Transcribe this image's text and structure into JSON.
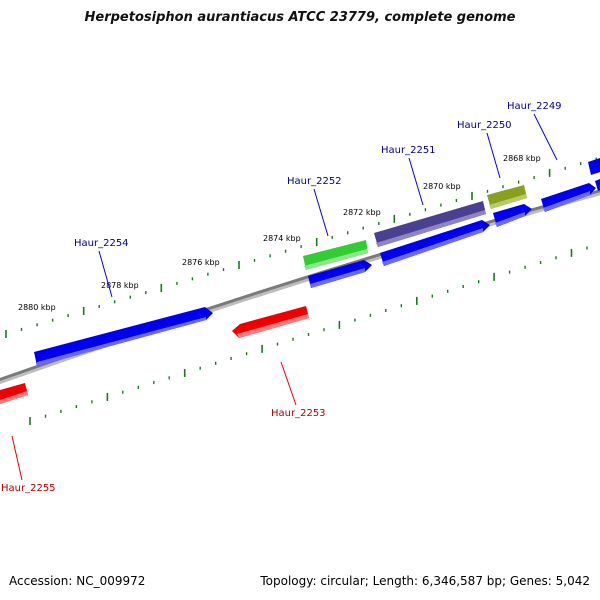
{
  "title": "Herpetosiphon aurantiacus ATCC 23779, complete genome",
  "accession_text": "Accession: NC_009972",
  "summary_text": "Topology: circular; Length: 6,346,587 bp; Genes: 5,042",
  "colors": {
    "backbone": "#808080",
    "forward_gene": "#0000ee",
    "reverse_gene": "#ee0000",
    "highlight_green": "#33cc33",
    "highlight_olive": "#88a020",
    "highlight_purple": "#4a4090",
    "tick": "#1a7a1a",
    "forward_label": "#00008b",
    "reverse_label": "#b00000"
  },
  "scale_labels": [
    "2880 kbp",
    "2878 kbp",
    "2876 kbp",
    "2874 kbp",
    "2872 kbp",
    "2870 kbp",
    "2868 kbp"
  ],
  "genes": [
    {
      "label": "Haur_2254",
      "strand": "forward"
    },
    {
      "label": "Haur_2253",
      "strand": "reverse"
    },
    {
      "label": "Haur_2252",
      "strand": "forward"
    },
    {
      "label": "Haur_2251",
      "strand": "forward"
    },
    {
      "label": "Haur_2250",
      "strand": "forward"
    },
    {
      "label": "Haur_2249",
      "strand": "forward"
    },
    {
      "label": "Haur_2255",
      "strand": "reverse"
    }
  ]
}
